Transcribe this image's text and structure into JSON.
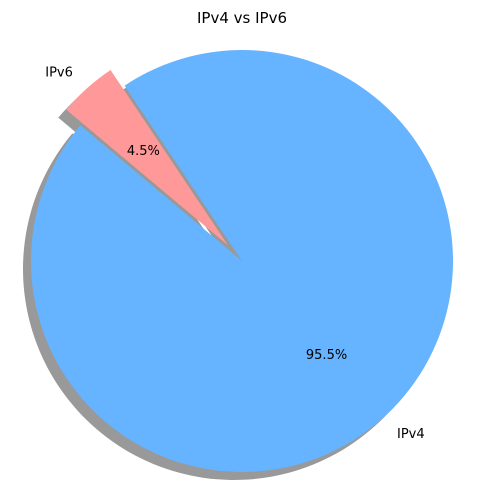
{
  "chart_data": {
    "type": "pie",
    "title": "IPv4 vs IPv6",
    "categories": [
      "IPv4",
      "IPv6"
    ],
    "values": [
      95.5,
      4.5
    ],
    "value_labels": [
      "95.5%",
      "4.5%"
    ],
    "colors": [
      "#66b3ff",
      "#ff9999"
    ],
    "shadow": true,
    "exploded": [
      "IPv6"
    ]
  }
}
